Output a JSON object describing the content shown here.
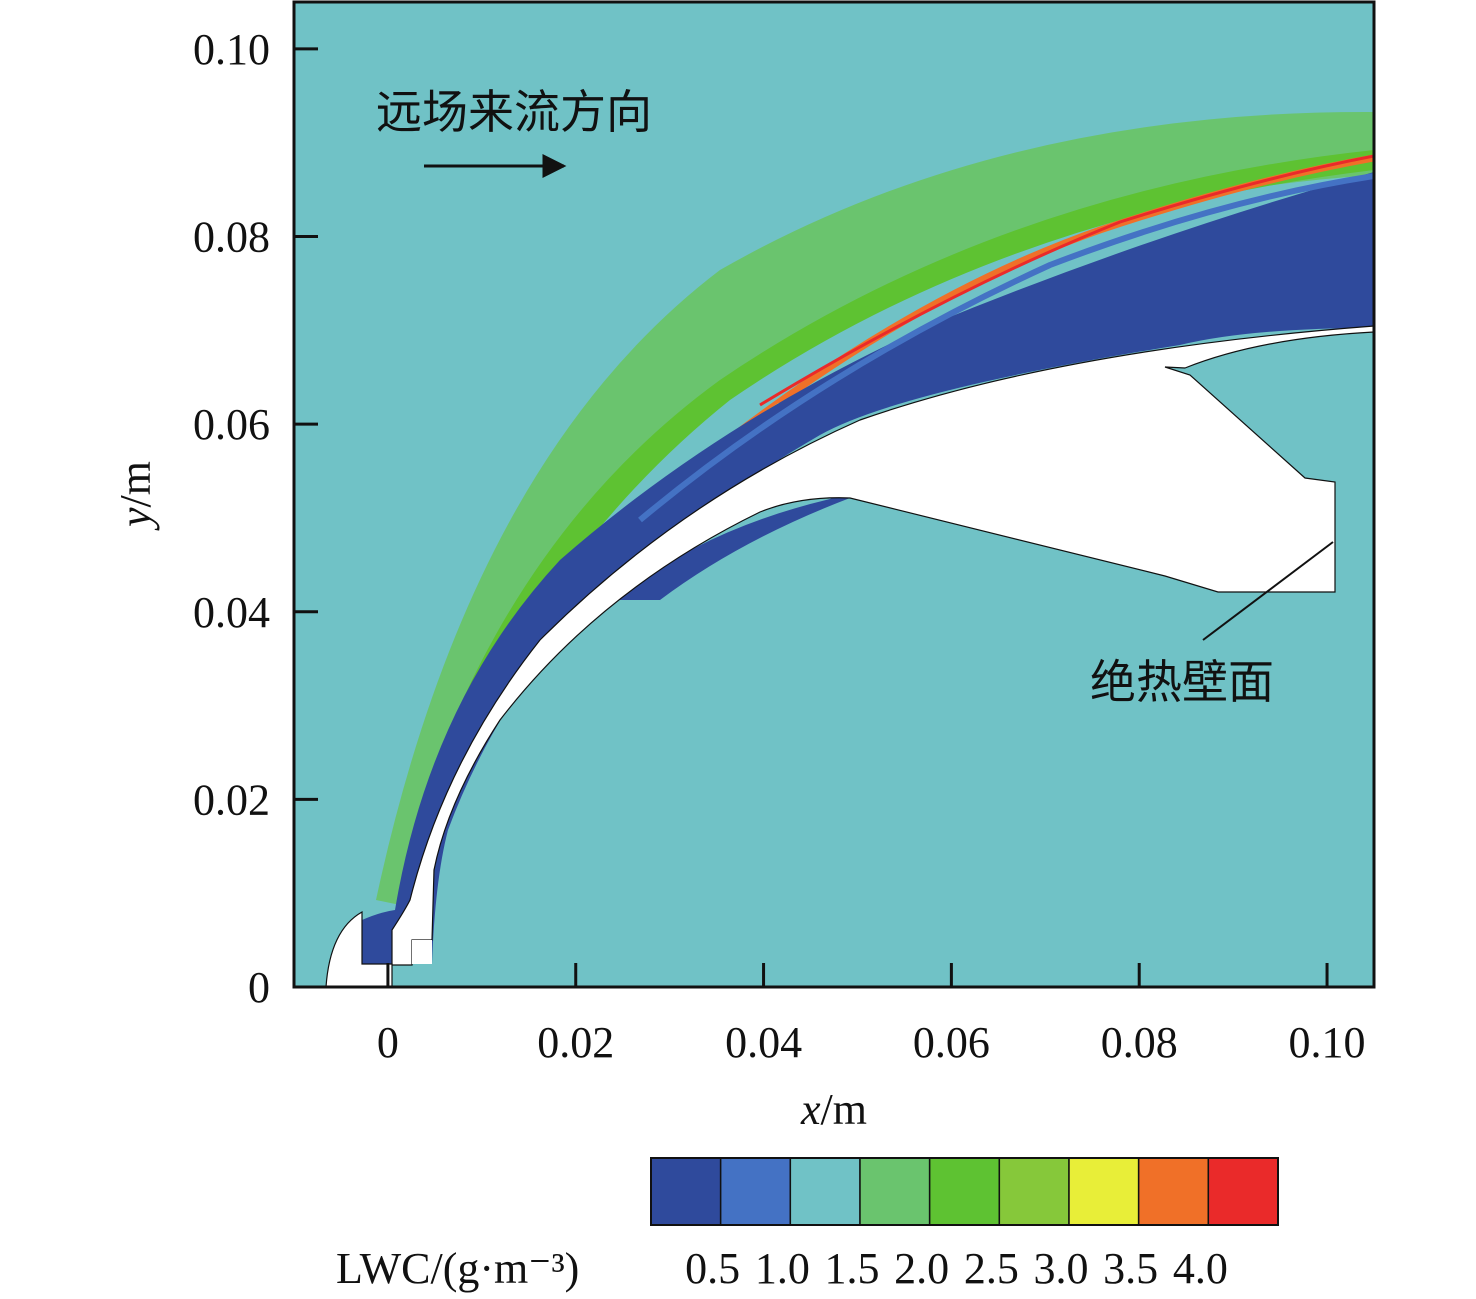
{
  "chart_data": {
    "type": "contour",
    "xlabel_var": "x",
    "xlabel_unit": "/m",
    "ylabel_var": "y",
    "ylabel_unit": "/m",
    "xlim": [
      -0.01,
      0.105
    ],
    "ylim": [
      0,
      0.105
    ],
    "x_ticks": [
      {
        "value": 0,
        "label": "0"
      },
      {
        "value": 0.02,
        "label": "0.02"
      },
      {
        "value": 0.04,
        "label": "0.04"
      },
      {
        "value": 0.06,
        "label": "0.06"
      },
      {
        "value": 0.08,
        "label": "0.08"
      },
      {
        "value": 0.1,
        "label": "0.10"
      }
    ],
    "y_ticks": [
      {
        "value": 0,
        "label": "0"
      },
      {
        "value": 0.02,
        "label": "0.02"
      },
      {
        "value": 0.04,
        "label": "0.04"
      },
      {
        "value": 0.06,
        "label": "0.06"
      },
      {
        "value": 0.08,
        "label": "0.08"
      },
      {
        "value": 0.1,
        "label": "0.10"
      }
    ],
    "annotations": {
      "flow_direction": "远场来流方向",
      "adiabatic_wall": "绝热壁面"
    },
    "colorbar": {
      "title": "LWC/(g·m⁻³)",
      "levels": [
        "0.5",
        "1.0",
        "1.5",
        "2.0",
        "2.5",
        "3.0",
        "3.5",
        "4.0"
      ],
      "colors": [
        "#2f4a9c",
        "#4472c4",
        "#70c2c6",
        "#6ac46e",
        "#5ec232",
        "#86c83a",
        "#e8ee38",
        "#f07028",
        "#ea2a2a"
      ]
    },
    "field_colors": {
      "freestream": "#70c2c6",
      "shock_band": "#6ac46e",
      "peak": "#ea2a2a",
      "depleted": "#2f4a9c",
      "wall": "#ffffff"
    },
    "grid": false
  }
}
